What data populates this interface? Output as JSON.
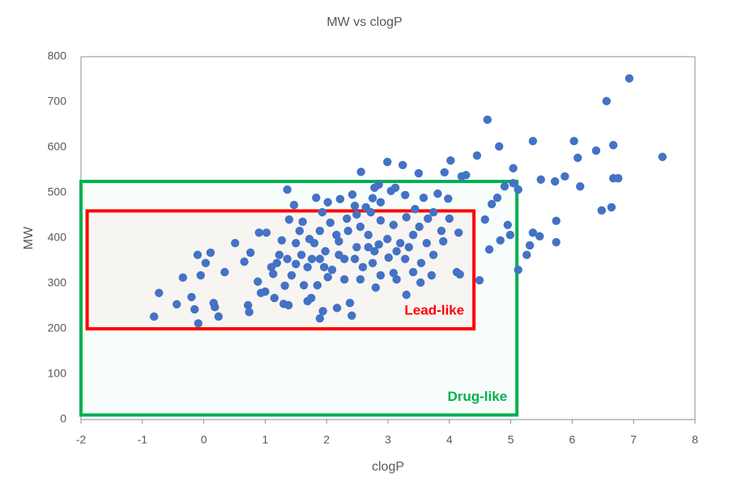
{
  "chart_data": {
    "type": "scatter",
    "title": "MW vs clogP",
    "x_label": "clogP",
    "y_label": "MW",
    "color": "#4472c4",
    "xlim": [
      -2,
      8
    ],
    "xticks": [
      -2,
      -1,
      0,
      1,
      2,
      3,
      4,
      5,
      6,
      7,
      8
    ],
    "ylim": [
      0,
      800
    ],
    "yticks": [
      0,
      100,
      200,
      300,
      400,
      500,
      600,
      700,
      800
    ],
    "grid": false,
    "regions": [
      {
        "label": "Drug-like",
        "color": "#00b050",
        "xlim": [
          -2,
          5.1
        ],
        "ylim": [
          10,
          525
        ]
      },
      {
        "label": "Lead-like",
        "color": "#ff0000",
        "xlim": [
          -1.9,
          4.4
        ],
        "ylim": [
          200,
          460
        ]
      }
    ],
    "x": [
      6.93,
      6.56,
      7.47,
      4.62,
      5.36,
      6.03,
      6.39,
      6.67,
      4.81,
      6.09,
      4.45,
      5.04,
      6.67,
      6.75,
      5.88,
      5.49,
      5.72,
      6.13,
      6.64,
      6.48,
      5.74,
      5.74,
      5.36,
      5.47,
      5.31,
      5.26,
      5.12,
      4.95,
      4.83,
      4.65,
      4.58,
      4.49,
      4.78,
      4.69,
      5.04,
      4.9,
      4.99,
      5.12,
      -0.81,
      -0.73,
      -0.44,
      -0.34,
      -0.2,
      -0.15,
      -0.09,
      -0.1,
      0.03,
      -0.05,
      0.11,
      0.16,
      0.18,
      0.24,
      0.34,
      0.51,
      0.66,
      0.76,
      0.72,
      0.74,
      0.9,
      1.02,
      0.88,
      0.93,
      1.0,
      1.19,
      1.13,
      1.36,
      1.47,
      1.39,
      1.27,
      1.3,
      1.38,
      1.15,
      1.32,
      1.61,
      1.83,
      1.93,
      2.02,
      1.69,
      1.75,
      1.89,
      1.94,
      2.17,
      2.38,
      2.41,
      2.56,
      2.99,
      3.24,
      3.5,
      3.92,
      4.02,
      4.2,
      4.27,
      4.12,
      4.17,
      3.71,
      3.41,
      3.53,
      3.3,
      2.8,
      3.09,
      3.98,
      3.81,
      3.58,
      2.85,
      3.05,
      3.12,
      3.28,
      2.78,
      2.88,
      2.72,
      2.42,
      2.22,
      2.46,
      2.64,
      1.43,
      1.59,
      1.69,
      1.8,
      1.89,
      1.98,
      2.09,
      2.2,
      2.29,
      2.35,
      2.49,
      2.59,
      2.68,
      2.78,
      2.88,
      2.99,
      3.09,
      3.2,
      3.3,
      3.41,
      3.51,
      3.63,
      3.74,
      3.87,
      4.0,
      3.9,
      4.15,
      3.74,
      3.54,
      3.28,
      3.01,
      2.75,
      2.55,
      2.29,
      2.02,
      1.85,
      1.63,
      1.5,
      1.56,
      1.72,
      1.89,
      2.06,
      2.16,
      2.33,
      2.55,
      2.68,
      2.85,
      3.14,
      3.34,
      1.96,
      1.76,
      1.23,
      1.1,
      1.36,
      1.5,
      2.2,
      2.46,
      2.88,
      3.14,
      2.49,
      2.75,
      3.44,
      3.65
    ],
    "values": [
      752,
      702,
      579,
      661,
      614,
      614,
      593,
      605,
      602,
      577,
      582,
      554,
      532,
      532,
      536,
      529,
      525,
      514,
      468,
      461,
      438,
      391,
      412,
      404,
      384,
      363,
      330,
      429,
      395,
      375,
      441,
      307,
      489,
      475,
      521,
      514,
      407,
      507,
      227,
      279,
      254,
      313,
      270,
      243,
      212,
      363,
      345,
      318,
      368,
      257,
      248,
      227,
      325,
      389,
      348,
      368,
      252,
      237,
      412,
      412,
      304,
      279,
      282,
      345,
      321,
      507,
      473,
      441,
      395,
      255,
      252,
      268,
      295,
      436,
      489,
      457,
      479,
      261,
      268,
      223,
      239,
      246,
      257,
      229,
      546,
      568,
      561,
      543,
      545,
      571,
      536,
      539,
      325,
      320,
      318,
      325,
      302,
      275,
      291,
      323,
      487,
      498,
      489,
      518,
      504,
      511,
      495,
      511,
      479,
      457,
      496,
      486,
      471,
      468,
      318,
      363,
      336,
      389,
      354,
      371,
      330,
      393,
      354,
      416,
      380,
      336,
      407,
      371,
      439,
      398,
      429,
      389,
      446,
      407,
      425,
      389,
      457,
      416,
      443,
      393,
      412,
      363,
      345,
      354,
      357,
      345,
      309,
      309,
      314,
      296,
      296,
      389,
      416,
      398,
      416,
      434,
      407,
      443,
      425,
      380,
      386,
      371,
      380,
      336,
      354,
      363,
      336,
      354,
      343,
      363,
      354,
      318,
      309,
      452,
      488,
      464,
      443
    ]
  }
}
